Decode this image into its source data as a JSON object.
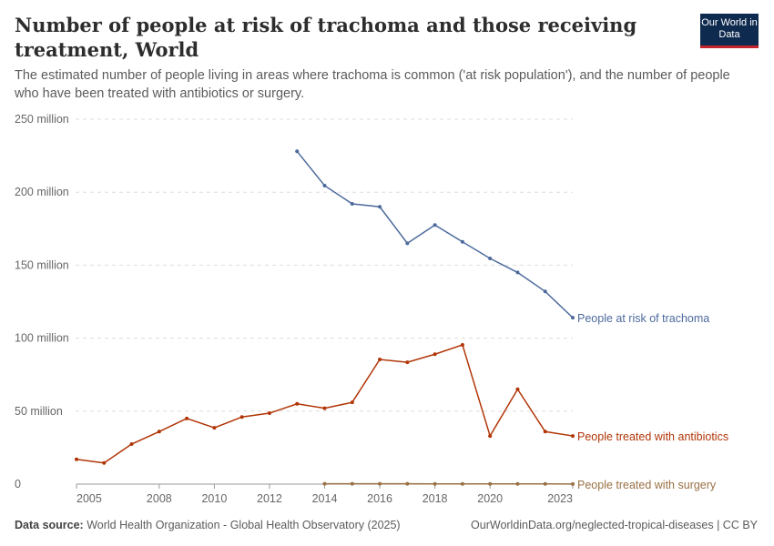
{
  "header": {
    "title": "Number of people at risk of trachoma and those receiving treatment, World",
    "subtitle": "The estimated number of people living in areas where trachoma is common ('at risk population'), and the number of people who have been treated with antibiotics or surgery.",
    "logo": "Our World in Data"
  },
  "footer": {
    "source_label": "Data source:",
    "source": "World Health Organization - Global Health Observatory (2025)",
    "link": "OurWorldinData.org/neglected-tropical-diseases | CC BY"
  },
  "chart_data": {
    "type": "line",
    "title": "Number of people at risk of trachoma and those receiving treatment, World",
    "xlim": [
      2005,
      2023
    ],
    "ylim": [
      0,
      250000000
    ],
    "y_ticks": [
      {
        "v": 0,
        "label": "0"
      },
      {
        "v": 50000000,
        "label": "50 million"
      },
      {
        "v": 100000000,
        "label": "100 million"
      },
      {
        "v": 150000000,
        "label": "150 million"
      },
      {
        "v": 200000000,
        "label": "200 million"
      },
      {
        "v": 250000000,
        "label": "250 million"
      }
    ],
    "x_ticks": [
      "2005",
      "2008",
      "2010",
      "2012",
      "2014",
      "2016",
      "2018",
      "2020",
      "2023"
    ],
    "grid": "horizontal dashed",
    "legend": "inline-right",
    "series": [
      {
        "name": "People at risk of trachoma",
        "color": "#4c6a9c",
        "x": [
          2013,
          2014,
          2015,
          2016,
          2017,
          2018,
          2019,
          2020,
          2021,
          2022,
          2023
        ],
        "values": [
          228000000,
          204500000,
          192000000,
          190000000,
          165000000,
          177500000,
          166000000,
          154600000,
          145000000,
          132000000,
          114000000
        ]
      },
      {
        "name": "People treated with antibiotics",
        "color": "#b13507",
        "x": [
          2005,
          2006,
          2007,
          2008,
          2009,
          2010,
          2011,
          2012,
          2013,
          2014,
          2015,
          2016,
          2017,
          2018,
          2019,
          2020,
          2021,
          2022,
          2023
        ],
        "values": [
          17000000,
          14500000,
          27400000,
          36000000,
          45000000,
          38600000,
          46000000,
          48600000,
          55000000,
          52000000,
          56000000,
          85400000,
          83500000,
          89000000,
          95400000,
          33000000,
          65000000,
          36000000,
          33000000
        ]
      },
      {
        "name": "People treated with surgery",
        "color": "#9a7145",
        "x": [
          2014,
          2015,
          2016,
          2017,
          2018,
          2019,
          2020,
          2021,
          2022,
          2023
        ],
        "values": [
          200000,
          250000,
          250000,
          250000,
          150000,
          150000,
          150000,
          150000,
          150000,
          100000
        ]
      }
    ]
  }
}
